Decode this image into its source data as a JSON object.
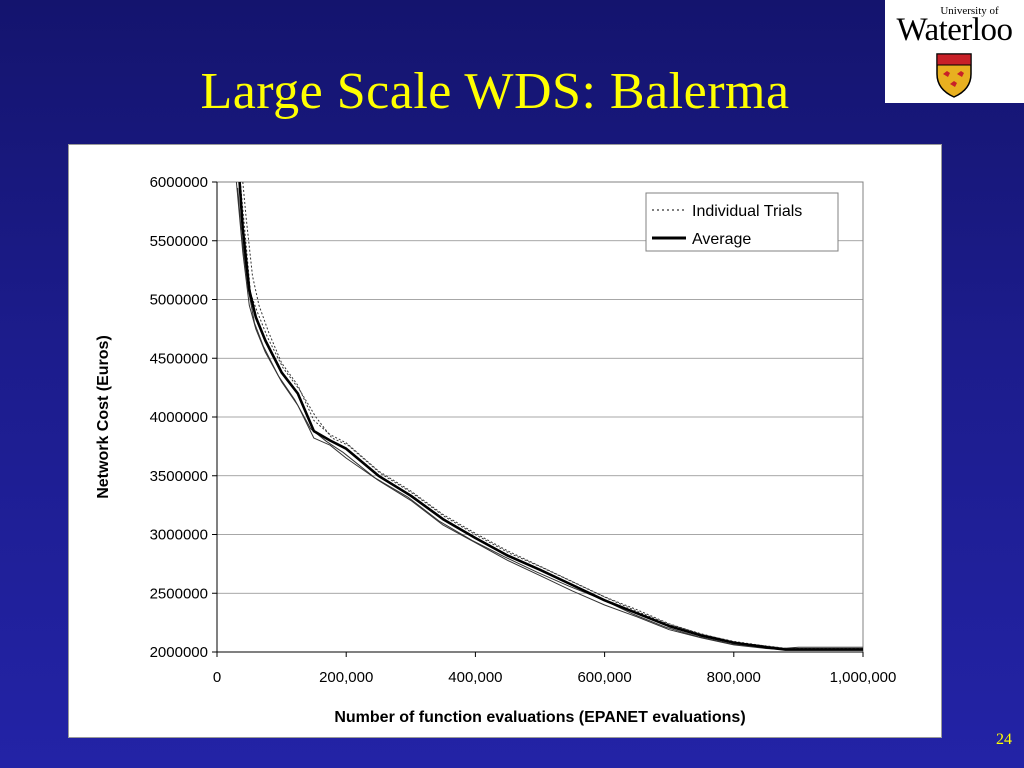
{
  "slide": {
    "title": "Large Scale WDS: Balerma",
    "page_number": "24",
    "logo": {
      "small_text": "University of",
      "big_text": "Waterloo"
    }
  },
  "colors": {
    "background": "#1c1c8c",
    "title": "#ffff00",
    "logo_crest_gold": "#e8b020",
    "logo_crest_red": "#c82028"
  },
  "chart_data": {
    "type": "line",
    "xlabel": "Number of function evaluations (EPANET evaluations)",
    "ylabel": "Network Cost (Euros)",
    "xlim": [
      0,
      1000000
    ],
    "ylim": [
      2000000,
      6000000
    ],
    "x_ticks": [
      "0",
      "200,000",
      "400,000",
      "600,000",
      "800,000",
      "1,000,000"
    ],
    "y_ticks": [
      "2000000",
      "2500000",
      "3000000",
      "3500000",
      "4000000",
      "4500000",
      "5000000",
      "5500000",
      "6000000"
    ],
    "grid": "horizontal",
    "legend": {
      "position": "top-right",
      "entries": [
        {
          "label": "Individual Trials",
          "style": "dotted"
        },
        {
          "label": "Average",
          "style": "solid"
        }
      ]
    },
    "series": [
      {
        "name": "Average",
        "x": [
          35000,
          40000,
          50000,
          60000,
          75000,
          100000,
          125000,
          150000,
          175000,
          200000,
          250000,
          300000,
          350000,
          400000,
          450000,
          500000,
          550000,
          600000,
          650000,
          700000,
          750000,
          800000,
          850000,
          880000,
          900000,
          1000000
        ],
        "values": [
          6000000,
          5600000,
          5080000,
          4850000,
          4650000,
          4380000,
          4200000,
          3880000,
          3800000,
          3730000,
          3500000,
          3330000,
          3130000,
          2970000,
          2820000,
          2700000,
          2570000,
          2440000,
          2330000,
          2220000,
          2140000,
          2080000,
          2040000,
          2020000,
          2020000,
          2020000
        ]
      },
      {
        "name": "Individual Trials",
        "x": [
          30000,
          40000,
          50000,
          60000,
          75000,
          100000,
          125000,
          150000,
          175000,
          200000,
          250000,
          300000,
          350000,
          400000,
          450000,
          500000,
          550000,
          600000,
          650000,
          700000,
          750000,
          800000,
          850000,
          880000,
          900000,
          1000000
        ],
        "values": [
          6000000,
          5400000,
          4950000,
          4750000,
          4550000,
          4300000,
          4100000,
          3820000,
          3760000,
          3650000,
          3460000,
          3290000,
          3080000,
          2930000,
          2780000,
          2650000,
          2520000,
          2400000,
          2300000,
          2190000,
          2120000,
          2060000,
          2030000,
          2020000,
          2020000,
          2020000
        ]
      },
      {
        "name": "Individual Trials",
        "x": [
          40000,
          45000,
          55000,
          65000,
          80000,
          100000,
          125000,
          150000,
          175000,
          200000,
          250000,
          300000,
          350000,
          400000,
          450000,
          500000,
          550000,
          600000,
          650000,
          700000,
          750000,
          800000,
          850000,
          880000,
          900000,
          1000000
        ],
        "values": [
          6000000,
          5700000,
          5200000,
          4950000,
          4720000,
          4460000,
          4270000,
          3970000,
          3850000,
          3780000,
          3540000,
          3370000,
          3170000,
          3010000,
          2860000,
          2730000,
          2600000,
          2470000,
          2360000,
          2240000,
          2150000,
          2090000,
          2050000,
          2030000,
          2030000,
          2030000
        ]
      },
      {
        "name": "Individual Trials",
        "x": [
          32000,
          38000,
          48000,
          58000,
          72000,
          95000,
          120000,
          145000,
          170000,
          195000,
          245000,
          295000,
          345000,
          395000,
          445000,
          495000,
          545000,
          595000,
          645000,
          695000,
          745000,
          795000,
          845000,
          875000,
          900000,
          1000000
        ],
        "values": [
          5950000,
          5550000,
          5100000,
          4800000,
          4600000,
          4350000,
          4150000,
          3900000,
          3790000,
          3700000,
          3480000,
          3320000,
          3110000,
          2950000,
          2810000,
          2680000,
          2560000,
          2450000,
          2320000,
          2210000,
          2130000,
          2070000,
          2040000,
          2030000,
          2040000,
          2040000
        ]
      },
      {
        "name": "Individual Trials",
        "x": [
          36000,
          42000,
          52000,
          62000,
          78000,
          102000,
          128000,
          153000,
          178000,
          203000,
          253000,
          303000,
          353000,
          403000,
          453000,
          503000,
          553000,
          603000,
          653000,
          703000,
          753000,
          803000,
          853000,
          883000,
          900000,
          1000000
        ],
        "values": [
          6000000,
          5650000,
          5050000,
          4900000,
          4680000,
          4420000,
          4230000,
          4000000,
          3820000,
          3760000,
          3520000,
          3350000,
          3150000,
          2990000,
          2840000,
          2720000,
          2590000,
          2460000,
          2340000,
          2230000,
          2150000,
          2080000,
          2050000,
          2030000,
          2030000,
          2030000
        ]
      }
    ]
  }
}
